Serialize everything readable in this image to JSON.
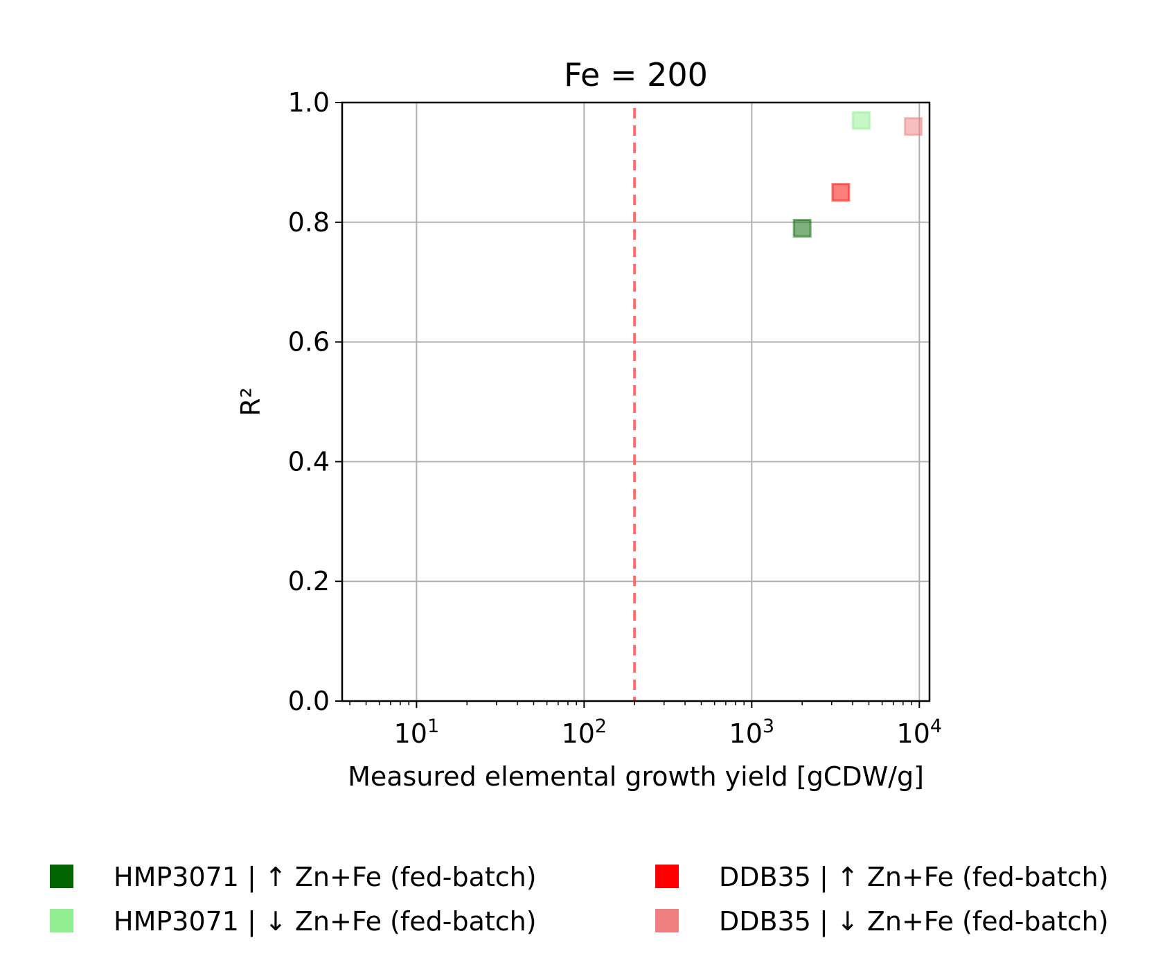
{
  "chart_data": {
    "type": "scatter",
    "title": "Fe = 200",
    "xlabel": "Measured elemental growth yield [gCDW/g]",
    "ylabel": "R²",
    "xscale": "log",
    "xlim": [
      3.6,
      11500
    ],
    "ylim": [
      0,
      1
    ],
    "x_tick_labels": [
      {
        "value": 10,
        "base": "10",
        "exp": "1"
      },
      {
        "value": 100,
        "base": "10",
        "exp": "2"
      },
      {
        "value": 1000,
        "base": "10",
        "exp": "3"
      },
      {
        "value": 10000,
        "base": "10",
        "exp": "4"
      }
    ],
    "y_ticks": [
      0.0,
      0.2,
      0.4,
      0.6,
      0.8,
      1.0
    ],
    "y_tick_labels": [
      "0.0",
      "0.2",
      "0.4",
      "0.6",
      "0.8",
      "1.0"
    ],
    "grid": true,
    "reference_line": {
      "x": 200,
      "style": "dashed",
      "color": "#ff6a6a"
    },
    "legend_placement": "bottom",
    "series": [
      {
        "name": "HMP3071 | ↑ Zn+Fe (fed-batch)",
        "color": "#006400",
        "marker_alpha": 0.5,
        "points": [
          {
            "x": 2000,
            "y": 0.79
          }
        ]
      },
      {
        "name": "HMP3071 | ↓ Zn+Fe (fed-batch)",
        "color": "#90ee90",
        "marker_alpha": 0.5,
        "points": [
          {
            "x": 4500,
            "y": 0.97
          }
        ]
      },
      {
        "name": "DDB35 | ↑ Zn+Fe (fed-batch)",
        "color": "#ff0000",
        "marker_alpha": 0.5,
        "points": [
          {
            "x": 3400,
            "y": 0.85
          }
        ]
      },
      {
        "name": "DDB35 | ↓ Zn+Fe (fed-batch)",
        "color": "#f08080",
        "marker_alpha": 0.5,
        "points": [
          {
            "x": 9200,
            "y": 0.96
          }
        ]
      }
    ]
  }
}
